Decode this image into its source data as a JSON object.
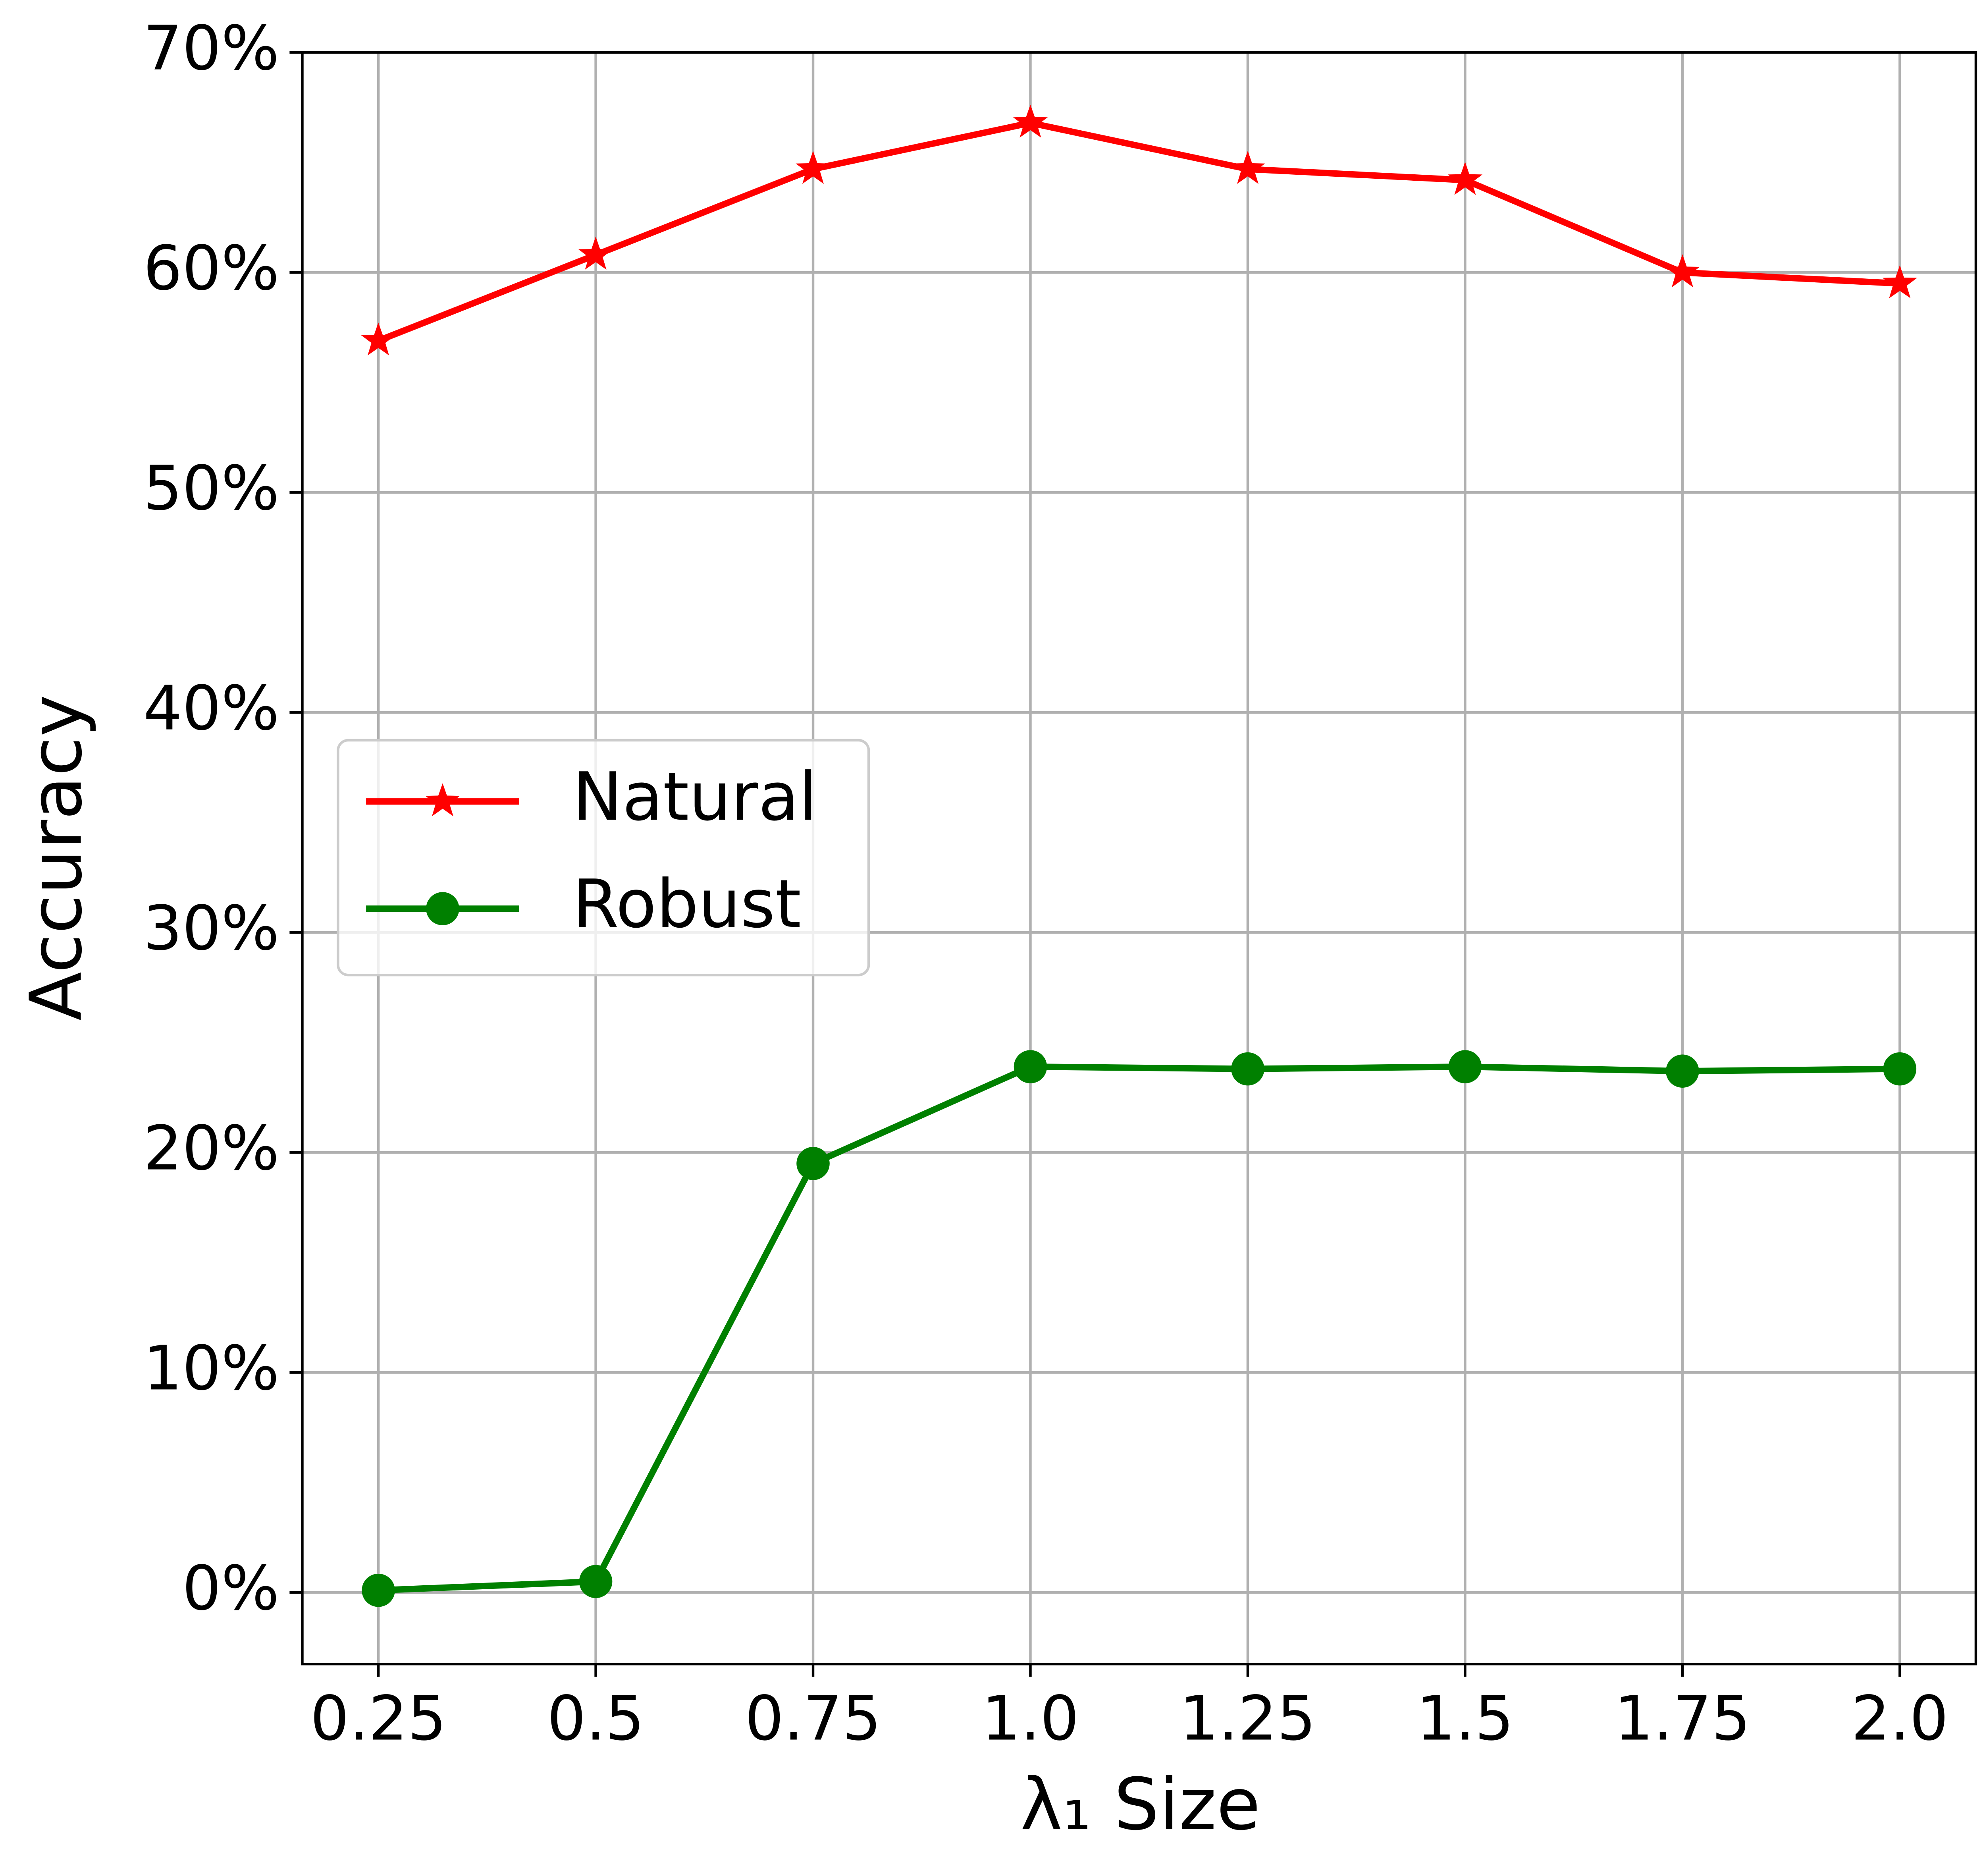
{
  "chart_data": {
    "type": "line",
    "x": [
      0.25,
      0.5,
      0.75,
      1.0,
      1.25,
      1.5,
      1.75,
      2.0
    ],
    "series": [
      {
        "name": "Natural",
        "color": "#ff0000",
        "marker": "star",
        "values": [
          56.9,
          60.8,
          64.7,
          66.8,
          64.7,
          64.2,
          60.0,
          59.5
        ]
      },
      {
        "name": "Robust",
        "color": "#008000",
        "marker": "circle",
        "values": [
          0.1,
          0.5,
          19.5,
          23.9,
          23.8,
          23.9,
          23.7,
          23.8
        ]
      }
    ],
    "xlabel": "λ₁ Size",
    "ylabel": "Accuracy",
    "xlim": [
      0.1625,
      2.0875
    ],
    "ylim": [
      -3.25,
      70
    ],
    "xticks": [
      0.25,
      0.5,
      0.75,
      {
        "value": 1.0,
        "label": "1.0"
      },
      1.25,
      1.5,
      1.75,
      {
        "value": 2.0,
        "label": "2.0"
      }
    ],
    "yticks": [
      {
        "value": 0,
        "label": "0%"
      },
      {
        "value": 10,
        "label": "10%"
      },
      {
        "value": 20,
        "label": "20%"
      },
      {
        "value": 30,
        "label": "30%"
      },
      {
        "value": 40,
        "label": "40%"
      },
      {
        "value": 50,
        "label": "50%"
      },
      {
        "value": 60,
        "label": "60%"
      },
      {
        "value": 70,
        "label": "70%"
      }
    ],
    "grid": true,
    "legend": "center left"
  }
}
